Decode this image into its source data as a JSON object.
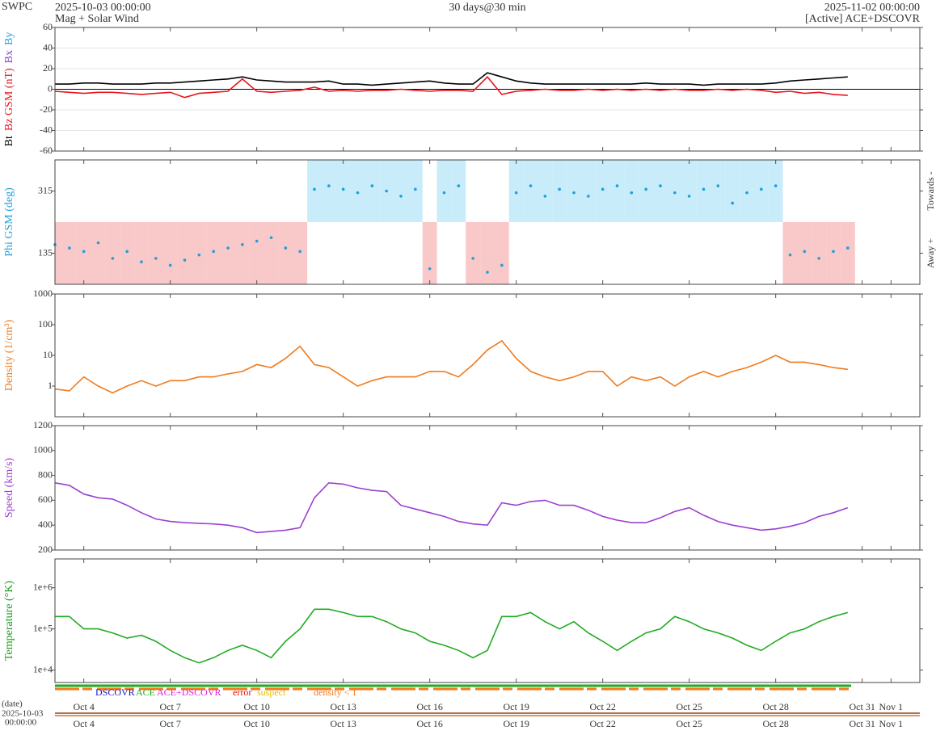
{
  "header": {
    "agency": "SWPC",
    "start": "2025-10-03 00:00:00",
    "product": "Mag + Solar Wind",
    "span": "30 days@30 min",
    "end": "2025-11-02 00:00:00",
    "source": "[Active] ACE+DSCOVR"
  },
  "status_legend": [
    {
      "text": "DSCOVR",
      "color": "#1414c8"
    },
    {
      "text": "ACE",
      "color": "#22aa22"
    },
    {
      "text": "ACE+DSCOVR",
      "color": "#e020e0"
    },
    {
      "text": "error",
      "color": "#e01010"
    },
    {
      "text": "suspect",
      "color": "#e0c000"
    },
    {
      "text": "density < 1",
      "color": "#f07a1c"
    }
  ],
  "footer": {
    "axis_label": "(date)",
    "start_day": "2025-10-03",
    "start_time": "00:00:00"
  },
  "time_axis": {
    "xlim": [
      0,
      30
    ],
    "xticks": [
      {
        "value": 1,
        "label": "Oct 4"
      },
      {
        "value": 4,
        "label": "Oct 7"
      },
      {
        "value": 7,
        "label": "Oct 10"
      },
      {
        "value": 10,
        "label": "Oct 13"
      },
      {
        "value": 13,
        "label": "Oct 16"
      },
      {
        "value": 16,
        "label": "Oct 19"
      },
      {
        "value": 19,
        "label": "Oct 22"
      },
      {
        "value": 22,
        "label": "Oct 25"
      },
      {
        "value": 25,
        "label": "Oct 28"
      },
      {
        "value": 28,
        "label": "Oct 31"
      },
      {
        "value": 29,
        "label": "Nov 1"
      }
    ]
  },
  "chart_data": [
    {
      "type": "line",
      "ylabel": [
        "Bt",
        "Bz GSM (nT)",
        "Bx",
        "By"
      ],
      "ylabel_colors": [
        "#000000",
        "#e8141c",
        "#8a3cc8",
        "#1ea0dc"
      ],
      "ylim": [
        -60,
        60
      ],
      "yticks": [
        -60,
        -40,
        -20,
        0,
        20,
        40,
        60
      ],
      "grid": true,
      "x": [
        0,
        0.5,
        1,
        1.5,
        2,
        2.5,
        3,
        3.5,
        4,
        4.5,
        5,
        5.5,
        6,
        6.5,
        7,
        7.5,
        8,
        8.5,
        9,
        9.5,
        10,
        10.5,
        11,
        11.5,
        12,
        12.5,
        13,
        13.5,
        14,
        14.5,
        15,
        15.5,
        16,
        16.5,
        17,
        17.5,
        18,
        18.5,
        19,
        19.5,
        20,
        20.5,
        21,
        21.5,
        22,
        22.5,
        23,
        23.5,
        24,
        24.5,
        25,
        25.5,
        26,
        26.5,
        27,
        27.5
      ],
      "series": [
        {
          "name": "Bt",
          "color": "#000000",
          "values": [
            5,
            5,
            6,
            6,
            5,
            5,
            5,
            6,
            6,
            7,
            8,
            9,
            10,
            12,
            9,
            8,
            7,
            7,
            7,
            8,
            5,
            5,
            4,
            5,
            6,
            7,
            8,
            6,
            5,
            5,
            16,
            12,
            8,
            6,
            5,
            5,
            5,
            5,
            5,
            5,
            5,
            6,
            5,
            5,
            5,
            4,
            5,
            5,
            5,
            5,
            6,
            8,
            9,
            10,
            11,
            12
          ]
        },
        {
          "name": "Bz",
          "color": "#e8141c",
          "values": [
            -2,
            -3,
            -4,
            -3,
            -3,
            -4,
            -5,
            -4,
            -3,
            -8,
            -4,
            -3,
            -2,
            10,
            -2,
            -3,
            -2,
            -1,
            2,
            -2,
            -1,
            -2,
            -1,
            -1,
            0,
            -1,
            -2,
            -1,
            -1,
            -2,
            12,
            -5,
            -2,
            -1,
            0,
            -1,
            -1,
            0,
            -1,
            0,
            -1,
            0,
            -1,
            0,
            -1,
            -1,
            0,
            -1,
            0,
            -1,
            -3,
            -2,
            -4,
            -3,
            -5,
            -6
          ]
        }
      ]
    },
    {
      "type": "scatter",
      "ylabel": [
        "Phi GSM (deg)"
      ],
      "ylabel_colors": [
        "#1ea0dc"
      ],
      "side_labels": [
        "Towards -",
        "Away +"
      ],
      "sector_shading": true,
      "towards_color": "#c8ecfa",
      "away_color": "#f9c8c8",
      "ylim": [
        45,
        405
      ],
      "yticks": [
        135,
        315
      ],
      "grid": false,
      "x": [
        0,
        0.5,
        1,
        1.5,
        2,
        2.5,
        3,
        3.5,
        4,
        4.5,
        5,
        5.5,
        6,
        6.5,
        7,
        7.5,
        8,
        8.5,
        9,
        9.5,
        10,
        10.5,
        11,
        11.5,
        12,
        12.5,
        13,
        13.5,
        14,
        14.5,
        15,
        15.5,
        16,
        16.5,
        17,
        17.5,
        18,
        18.5,
        19,
        19.5,
        20,
        20.5,
        21,
        21.5,
        22,
        22.5,
        23,
        23.5,
        24,
        24.5,
        25,
        25.5,
        26,
        26.5,
        27,
        27.5
      ],
      "series": [
        {
          "name": "Phi",
          "color": "#1ea0dc",
          "values": [
            160,
            150,
            140,
            165,
            120,
            140,
            110,
            120,
            100,
            115,
            130,
            140,
            150,
            160,
            170,
            180,
            150,
            140,
            320,
            330,
            320,
            310,
            330,
            315,
            300,
            320,
            90,
            310,
            330,
            120,
            80,
            100,
            310,
            330,
            300,
            320,
            310,
            300,
            320,
            330,
            310,
            320,
            330,
            310,
            300,
            320,
            330,
            280,
            310,
            320,
            330,
            130,
            140,
            120,
            140,
            150
          ]
        }
      ]
    },
    {
      "type": "line",
      "ylabel": [
        "Density (1/cm³)"
      ],
      "ylabel_colors": [
        "#f07a1c"
      ],
      "log_scale": true,
      "ylim": [
        0.1,
        1000
      ],
      "yticks": [
        1,
        10,
        100,
        1000
      ],
      "grid": false,
      "x": [
        0,
        0.5,
        1,
        1.5,
        2,
        2.5,
        3,
        3.5,
        4,
        4.5,
        5,
        5.5,
        6,
        6.5,
        7,
        7.5,
        8,
        8.5,
        9,
        9.5,
        10,
        10.5,
        11,
        11.5,
        12,
        12.5,
        13,
        13.5,
        14,
        14.5,
        15,
        15.5,
        16,
        16.5,
        17,
        17.5,
        18,
        18.5,
        19,
        19.5,
        20,
        20.5,
        21,
        21.5,
        22,
        22.5,
        23,
        23.5,
        24,
        24.5,
        25,
        25.5,
        26,
        26.5,
        27,
        27.5
      ],
      "series": [
        {
          "name": "Density",
          "color": "#f07a1c",
          "values": [
            0.8,
            0.7,
            2,
            1,
            0.6,
            1,
            1.5,
            1,
            1.5,
            1.5,
            2,
            2,
            2.5,
            3,
            5,
            4,
            8,
            20,
            5,
            4,
            2,
            1,
            1.5,
            2,
            2,
            2,
            3,
            3,
            2,
            5,
            15,
            30,
            8,
            3,
            2,
            1.5,
            2,
            3,
            3,
            1,
            2,
            1.5,
            2,
            1,
            2,
            3,
            2,
            3,
            4,
            6,
            10,
            6,
            6,
            5,
            4,
            3.5
          ]
        }
      ]
    },
    {
      "type": "line",
      "ylabel": [
        "Speed (km/s)"
      ],
      "ylabel_colors": [
        "#9b40d0"
      ],
      "ylim": [
        200,
        1200
      ],
      "yticks": [
        200,
        400,
        600,
        800,
        1000,
        1200
      ],
      "grid": false,
      "x": [
        0,
        0.5,
        1,
        1.5,
        2,
        2.5,
        3,
        3.5,
        4,
        4.5,
        5,
        5.5,
        6,
        6.5,
        7,
        7.5,
        8,
        8.5,
        9,
        9.5,
        10,
        10.5,
        11,
        11.5,
        12,
        12.5,
        13,
        13.5,
        14,
        14.5,
        15,
        15.5,
        16,
        16.5,
        17,
        17.5,
        18,
        18.5,
        19,
        19.5,
        20,
        20.5,
        21,
        21.5,
        22,
        22.5,
        23,
        23.5,
        24,
        24.5,
        25,
        25.5,
        26,
        26.5,
        27,
        27.5
      ],
      "series": [
        {
          "name": "Speed",
          "color": "#9b40d0",
          "values": [
            740,
            720,
            650,
            620,
            610,
            560,
            500,
            450,
            430,
            420,
            415,
            410,
            400,
            380,
            340,
            350,
            360,
            380,
            620,
            740,
            730,
            700,
            680,
            670,
            560,
            530,
            500,
            470,
            430,
            410,
            400,
            580,
            560,
            590,
            600,
            560,
            560,
            520,
            470,
            440,
            420,
            420,
            460,
            510,
            540,
            480,
            430,
            400,
            380,
            360,
            370,
            390,
            420,
            470,
            500,
            540
          ]
        }
      ]
    },
    {
      "type": "line",
      "ylabel": [
        "Temperature (°K)"
      ],
      "ylabel_colors": [
        "#1a9a1a"
      ],
      "log_scale": true,
      "ylim": [
        5000,
        5000000
      ],
      "yticks": [
        {
          "value": 10000,
          "label": "1e+4"
        },
        {
          "value": 100000,
          "label": "1e+5"
        },
        {
          "value": 1000000,
          "label": "1e+6"
        }
      ],
      "grid": false,
      "x": [
        0,
        0.5,
        1,
        1.5,
        2,
        2.5,
        3,
        3.5,
        4,
        4.5,
        5,
        5.5,
        6,
        6.5,
        7,
        7.5,
        8,
        8.5,
        9,
        9.5,
        10,
        10.5,
        11,
        11.5,
        12,
        12.5,
        13,
        13.5,
        14,
        14.5,
        15,
        15.5,
        16,
        16.5,
        17,
        17.5,
        18,
        18.5,
        19,
        19.5,
        20,
        20.5,
        21,
        21.5,
        22,
        22.5,
        23,
        23.5,
        24,
        24.5,
        25,
        25.5,
        26,
        26.5,
        27,
        27.5
      ],
      "series": [
        {
          "name": "Temperature",
          "color": "#22aa22",
          "values": [
            200000,
            200000,
            100000,
            100000,
            80000,
            60000,
            70000,
            50000,
            30000,
            20000,
            15000,
            20000,
            30000,
            40000,
            30000,
            20000,
            50000,
            100000,
            300000,
            300000,
            250000,
            200000,
            200000,
            150000,
            100000,
            80000,
            50000,
            40000,
            30000,
            20000,
            30000,
            200000,
            200000,
            250000,
            150000,
            100000,
            150000,
            80000,
            50000,
            30000,
            50000,
            80000,
            100000,
            200000,
            150000,
            100000,
            80000,
            60000,
            40000,
            30000,
            50000,
            80000,
            100000,
            150000,
            200000,
            250000
          ]
        }
      ]
    }
  ]
}
